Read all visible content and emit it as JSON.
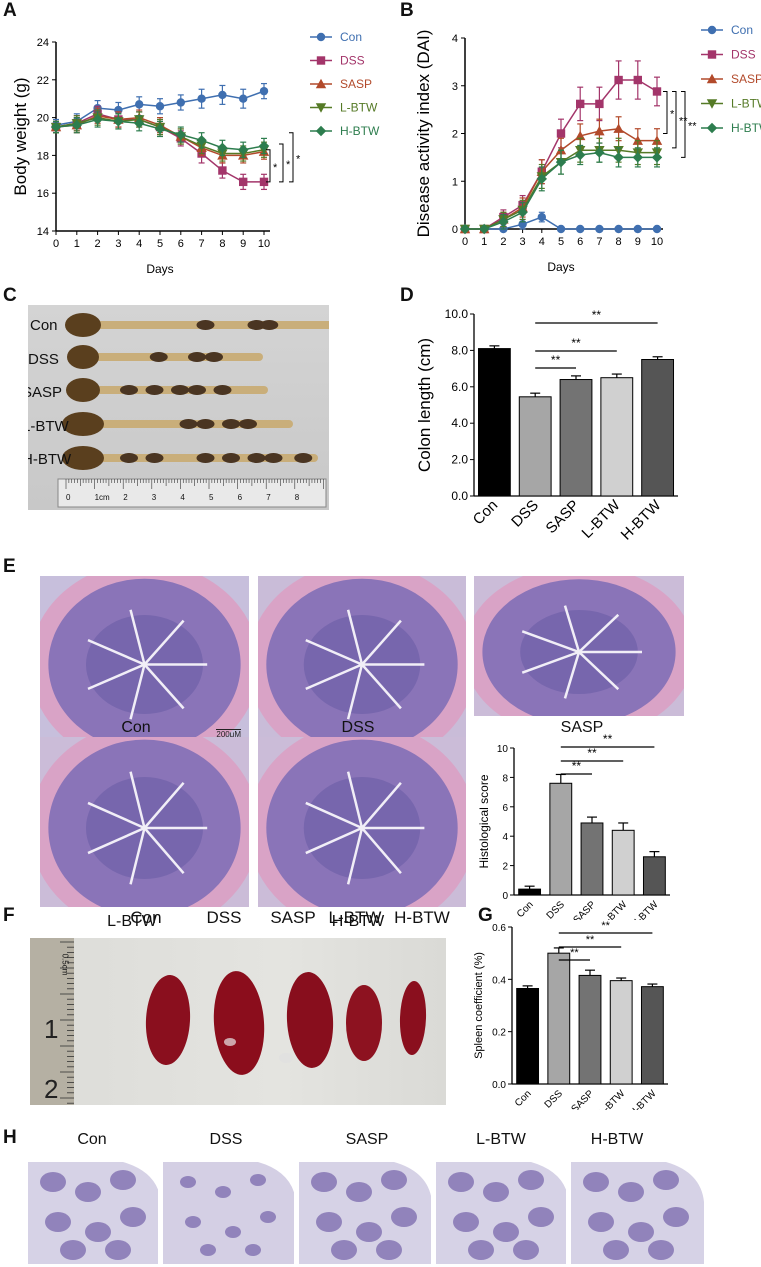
{
  "panels": {
    "A": "A",
    "B": "B",
    "C": "C",
    "D": "D",
    "E": "E",
    "F": "F",
    "G": "G",
    "H": "H"
  },
  "groups": [
    "Con",
    "DSS",
    "SASP",
    "L-BTW",
    "H-BTW"
  ],
  "colors": {
    "Con": "#3f6fb0",
    "DSS": "#a3356a",
    "SASP": "#b24a2b",
    "L-BTW": "#557a26",
    "H-BTW": "#2d7d4e"
  },
  "panelC": {
    "labels": [
      "Con",
      "DSS",
      "SASP",
      "L-BTW",
      "H-BTW"
    ],
    "ruler_labels": [
      "0",
      "1cm",
      "2",
      "3",
      "4",
      "5",
      "6",
      "7",
      "8"
    ]
  },
  "panelE": {
    "image_labels": [
      "Con",
      "DSS",
      "SASP",
      "L-BTW",
      "H-BTW"
    ],
    "scale_bar": "200μM"
  },
  "panelF": {
    "labels": [
      "Con",
      "DSS",
      "SASP",
      "L-BTW",
      "H-BTW"
    ],
    "ruler_text": "0.5cm"
  },
  "panelH": {
    "labels": [
      "Con",
      "DSS",
      "SASP",
      "L-BTW",
      "H-BTW"
    ]
  },
  "chart_data": [
    {
      "id": "A",
      "type": "line",
      "xlabel": "Days",
      "ylabel": "Body weight (g)",
      "x": [
        0,
        1,
        2,
        3,
        4,
        5,
        6,
        7,
        8,
        9,
        10
      ],
      "xlim": [
        0,
        10
      ],
      "ylim": [
        14,
        24
      ],
      "yticks": [
        14,
        16,
        18,
        20,
        22,
        24
      ],
      "legend": "right",
      "series": [
        {
          "name": "Con",
          "marker": "circle",
          "values": [
            19.6,
            19.8,
            20.5,
            20.4,
            20.7,
            20.6,
            20.8,
            21.0,
            21.2,
            21.0,
            21.4
          ],
          "err": [
            0.3,
            0.4,
            0.4,
            0.4,
            0.4,
            0.4,
            0.4,
            0.5,
            0.5,
            0.5,
            0.4
          ]
        },
        {
          "name": "DSS",
          "marker": "square",
          "values": [
            19.5,
            19.7,
            20.2,
            19.9,
            19.9,
            19.5,
            18.9,
            18.1,
            17.2,
            16.6,
            16.6
          ],
          "err": [
            0.3,
            0.4,
            0.4,
            0.4,
            0.4,
            0.4,
            0.4,
            0.5,
            0.4,
            0.4,
            0.4
          ]
        },
        {
          "name": "SASP",
          "marker": "triangle-up",
          "values": [
            19.5,
            19.6,
            20.1,
            19.9,
            20.0,
            19.6,
            19.0,
            18.4,
            18.0,
            18.0,
            18.2
          ],
          "err": [
            0.3,
            0.4,
            0.4,
            0.4,
            0.4,
            0.4,
            0.4,
            0.4,
            0.4,
            0.4,
            0.4
          ]
        },
        {
          "name": "L-BTW",
          "marker": "triangle-down",
          "values": [
            19.5,
            19.7,
            20.0,
            19.8,
            19.9,
            19.5,
            19.0,
            18.5,
            18.1,
            18.1,
            18.3
          ],
          "err": [
            0.3,
            0.4,
            0.4,
            0.4,
            0.4,
            0.4,
            0.4,
            0.4,
            0.4,
            0.4,
            0.4
          ]
        },
        {
          "name": "H-BTW",
          "marker": "diamond",
          "values": [
            19.5,
            19.6,
            19.9,
            19.8,
            19.7,
            19.4,
            19.1,
            18.8,
            18.4,
            18.3,
            18.5
          ],
          "err": [
            0.3,
            0.4,
            0.4,
            0.4,
            0.4,
            0.4,
            0.4,
            0.4,
            0.4,
            0.4,
            0.4
          ]
        }
      ],
      "annotations": [
        "*",
        "*",
        "*"
      ]
    },
    {
      "id": "B",
      "type": "line",
      "xlabel": "Days",
      "ylabel": "Disease activity index (DAI)",
      "x": [
        0,
        1,
        2,
        3,
        4,
        5,
        6,
        7,
        8,
        9,
        10
      ],
      "xlim": [
        0,
        10
      ],
      "ylim": [
        0,
        4
      ],
      "yticks": [
        0,
        1,
        2,
        3,
        4
      ],
      "legend": "right",
      "series": [
        {
          "name": "Con",
          "marker": "circle",
          "values": [
            0,
            0,
            0,
            0.1,
            0.25,
            0,
            0,
            0,
            0,
            0,
            0
          ],
          "err": [
            0,
            0,
            0,
            0.1,
            0.1,
            0,
            0,
            0,
            0,
            0,
            0
          ]
        },
        {
          "name": "DSS",
          "marker": "square",
          "values": [
            0,
            0,
            0.25,
            0.5,
            1.2,
            2.0,
            2.62,
            2.62,
            3.12,
            3.12,
            2.88
          ],
          "err": [
            0,
            0,
            0.15,
            0.2,
            0.25,
            0.3,
            0.35,
            0.35,
            0.4,
            0.4,
            0.3
          ]
        },
        {
          "name": "SASP",
          "marker": "triangle-up",
          "values": [
            0,
            0,
            0.2,
            0.45,
            1.2,
            1.65,
            1.95,
            2.05,
            2.1,
            1.85,
            1.85
          ],
          "err": [
            0,
            0,
            0.15,
            0.2,
            0.25,
            0.25,
            0.25,
            0.25,
            0.25,
            0.25,
            0.25
          ]
        },
        {
          "name": "L-BTW",
          "marker": "triangle-down",
          "values": [
            0,
            0,
            0.2,
            0.4,
            1.1,
            1.4,
            1.65,
            1.65,
            1.65,
            1.6,
            1.6
          ],
          "err": [
            0,
            0,
            0.15,
            0.2,
            0.25,
            0.25,
            0.25,
            0.25,
            0.25,
            0.25,
            0.25
          ]
        },
        {
          "name": "H-BTW",
          "marker": "diamond",
          "values": [
            0,
            0,
            0.15,
            0.35,
            1.05,
            1.4,
            1.55,
            1.6,
            1.5,
            1.5,
            1.5
          ],
          "err": [
            0,
            0,
            0.15,
            0.2,
            0.25,
            0.25,
            0.2,
            0.2,
            0.2,
            0.2,
            0.2
          ]
        }
      ],
      "annotations": [
        "*",
        "**",
        "**"
      ]
    },
    {
      "id": "D",
      "type": "bar",
      "ylabel": "Colon length (cm)",
      "categories": [
        "Con",
        "DSS",
        "SASP",
        "L-BTW",
        "H-BTW"
      ],
      "values": [
        8.1,
        5.45,
        6.4,
        6.5,
        7.5
      ],
      "err": [
        0.15,
        0.2,
        0.2,
        0.2,
        0.15
      ],
      "ylim": [
        0,
        10
      ],
      "yticks": [
        "0.0",
        "2.0",
        "4.0",
        "6.0",
        "8.0",
        "10.0"
      ],
      "fills": [
        "#000000",
        "#a6a6a6",
        "#737373",
        "#d0d0d0",
        "#555555"
      ],
      "significance": [
        "**",
        "**",
        "**"
      ]
    },
    {
      "id": "E-chart",
      "type": "bar",
      "ylabel": "Histological score",
      "categories": [
        "Con",
        "DSS",
        "SASP",
        "L-BTW",
        "H-BTW"
      ],
      "values": [
        0.4,
        7.6,
        4.9,
        4.4,
        2.6
      ],
      "err": [
        0.2,
        0.6,
        0.4,
        0.5,
        0.35
      ],
      "ylim": [
        0,
        10
      ],
      "yticks": [
        "0",
        "2",
        "4",
        "6",
        "8",
        "10"
      ],
      "fills": [
        "#000000",
        "#a6a6a6",
        "#737373",
        "#d0d0d0",
        "#555555"
      ],
      "significance": [
        "**",
        "**",
        "**"
      ]
    },
    {
      "id": "G",
      "type": "bar",
      "ylabel": "Spleen coefficient (%)",
      "categories": [
        "Con",
        "DSS",
        "SASP",
        "L-BTW",
        "H-BTW"
      ],
      "values": [
        0.365,
        0.5,
        0.415,
        0.395,
        0.372
      ],
      "err": [
        0.01,
        0.02,
        0.02,
        0.01,
        0.01
      ],
      "ylim": [
        0,
        0.6
      ],
      "yticks": [
        "0.0",
        "0.2",
        "0.4",
        "0.6"
      ],
      "fills": [
        "#000000",
        "#a6a6a6",
        "#737373",
        "#d0d0d0",
        "#555555"
      ],
      "significance": [
        "**",
        "**",
        "**"
      ]
    }
  ]
}
